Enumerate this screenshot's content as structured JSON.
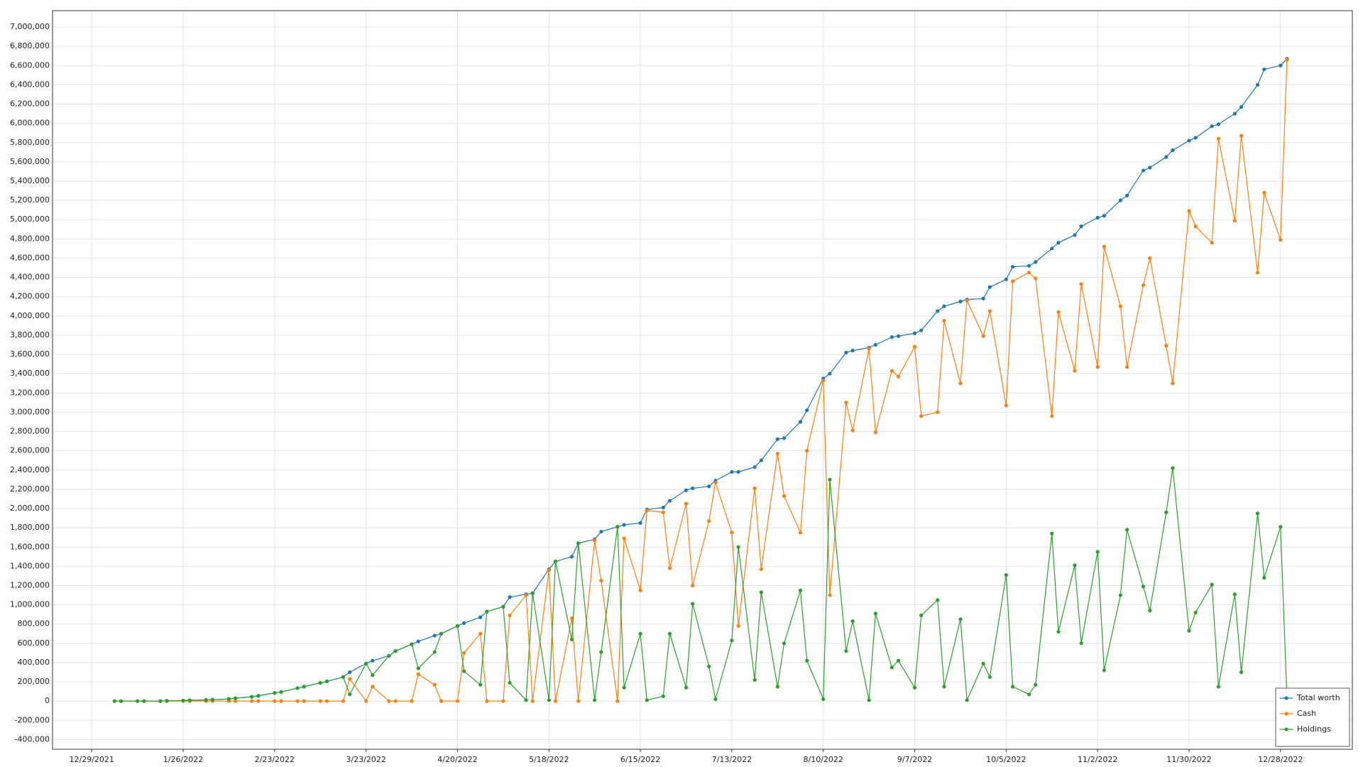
{
  "chart_data": {
    "type": "line",
    "x": [
      "1/5/2022",
      "1/7/2022",
      "1/12/2022",
      "1/14/2022",
      "1/19/2022",
      "1/21/2022",
      "1/26/2022",
      "1/28/2022",
      "2/2/2022",
      "2/4/2022",
      "2/9/2022",
      "2/11/2022",
      "2/16/2022",
      "2/18/2022",
      "2/23/2022",
      "2/25/2022",
      "3/2/2022",
      "3/4/2022",
      "3/9/2022",
      "3/11/2022",
      "3/16/2022",
      "3/18/2022",
      "3/23/2022",
      "3/25/2022",
      "3/30/2022",
      "4/1/2022",
      "4/6/2022",
      "4/8/2022",
      "4/13/2022",
      "4/15/2022",
      "4/20/2022",
      "4/22/2022",
      "4/27/2022",
      "4/29/2022",
      "5/4/2022",
      "5/6/2022",
      "5/11/2022",
      "5/13/2022",
      "5/18/2022",
      "5/20/2022",
      "5/25/2022",
      "5/27/2022",
      "6/1/2022",
      "6/3/2022",
      "6/8/2022",
      "6/10/2022",
      "6/15/2022",
      "6/17/2022",
      "6/22/2022",
      "6/24/2022",
      "6/29/2022",
      "7/1/2022",
      "7/6/2022",
      "7/8/2022",
      "7/13/2022",
      "7/15/2022",
      "7/20/2022",
      "7/22/2022",
      "7/27/2022",
      "7/29/2022",
      "8/3/2022",
      "8/5/2022",
      "8/10/2022",
      "8/12/2022",
      "8/17/2022",
      "8/19/2022",
      "8/24/2022",
      "8/26/2022",
      "8/31/2022",
      "9/2/2022",
      "9/7/2022",
      "9/9/2022",
      "9/14/2022",
      "9/16/2022",
      "9/21/2022",
      "9/23/2022",
      "9/28/2022",
      "9/30/2022",
      "10/5/2022",
      "10/7/2022",
      "10/12/2022",
      "10/14/2022",
      "10/19/2022",
      "10/21/2022",
      "10/26/2022",
      "10/28/2022",
      "11/2/2022",
      "11/4/2022",
      "11/9/2022",
      "11/11/2022",
      "11/16/2022",
      "11/18/2022",
      "11/23/2022",
      "11/25/2022",
      "11/30/2022",
      "12/2/2022",
      "12/7/2022",
      "12/9/2022",
      "12/14/2022",
      "12/16/2022",
      "12/21/2022",
      "12/23/2022",
      "12/28/2022",
      "12/30/2022"
    ],
    "series": [
      {
        "name": "Total worth",
        "color": "#1f77b4",
        "values": [
          0,
          0,
          0,
          0,
          0,
          3000,
          5000,
          8000,
          12000,
          15000,
          22000,
          30000,
          45000,
          55000,
          85000,
          95000,
          135000,
          150000,
          190000,
          205000,
          250000,
          300000,
          390000,
          420000,
          470000,
          520000,
          590000,
          620000,
          680000,
          700000,
          780000,
          810000,
          870000,
          930000,
          980000,
          1080000,
          1110000,
          1120000,
          1370000,
          1450000,
          1500000,
          1640000,
          1680000,
          1760000,
          1810000,
          1830000,
          1850000,
          1990000,
          2010000,
          2080000,
          2190000,
          2210000,
          2230000,
          2290000,
          2380000,
          2380000,
          2430000,
          2500000,
          2720000,
          2730000,
          2900000,
          3020000,
          3350000,
          3400000,
          3620000,
          3640000,
          3670000,
          3700000,
          3780000,
          3790000,
          3820000,
          3850000,
          4050000,
          4100000,
          4150000,
          4170000,
          4180000,
          4300000,
          4380000,
          4510000,
          4520000,
          4560000,
          4700000,
          4760000,
          4840000,
          4930000,
          5020000,
          5040000,
          5200000,
          5250000,
          5510000,
          5540000,
          5650000,
          5720000,
          5820000,
          5850000,
          5970000,
          5990000,
          6100000,
          6170000,
          6400000,
          6560000,
          6600000,
          6670000
        ]
      },
      {
        "name": "Cash",
        "color": "#ff7f0e",
        "values": [
          0,
          0,
          0,
          0,
          0,
          0,
          0,
          0,
          0,
          0,
          0,
          0,
          0,
          0,
          0,
          0,
          0,
          0,
          0,
          0,
          0,
          230000,
          0,
          150000,
          0,
          0,
          0,
          280000,
          170000,
          0,
          0,
          500000,
          700000,
          0,
          0,
          890000,
          1100000,
          0,
          1360000,
          0,
          860000,
          0,
          1670000,
          1250000,
          0,
          1690000,
          1150000,
          1980000,
          1960000,
          1380000,
          2050000,
          1200000,
          1870000,
          2270000,
          1750000,
          780000,
          2210000,
          1370000,
          2570000,
          2130000,
          1750000,
          2600000,
          3330000,
          1100000,
          3100000,
          2810000,
          3660000,
          2790000,
          3430000,
          3370000,
          3680000,
          2960000,
          3000000,
          3950000,
          3300000,
          4160000,
          3790000,
          4050000,
          3070000,
          4360000,
          4450000,
          4390000,
          2960000,
          4040000,
          3430000,
          4330000,
          3470000,
          4720000,
          4100000,
          3470000,
          4320000,
          4600000,
          3690000,
          3300000,
          5090000,
          4930000,
          4760000,
          5840000,
          4990000,
          5870000,
          4450000,
          5280000,
          4790000,
          6660000
        ]
      },
      {
        "name": "Holdings",
        "color": "#2ca02c",
        "values": [
          0,
          0,
          0,
          0,
          0,
          3000,
          5000,
          8000,
          12000,
          15000,
          22000,
          30000,
          45000,
          55000,
          85000,
          95000,
          135000,
          150000,
          190000,
          205000,
          250000,
          70000,
          390000,
          270000,
          470000,
          520000,
          590000,
          340000,
          510000,
          700000,
          780000,
          310000,
          170000,
          930000,
          980000,
          190000,
          10000,
          1120000,
          10000,
          1450000,
          640000,
          1640000,
          10000,
          510000,
          1810000,
          140000,
          700000,
          10000,
          50000,
          700000,
          140000,
          1010000,
          360000,
          20000,
          630000,
          1600000,
          220000,
          1130000,
          150000,
          600000,
          1150000,
          420000,
          20000,
          2300000,
          520000,
          830000,
          10000,
          910000,
          350000,
          420000,
          140000,
          890000,
          1050000,
          150000,
          850000,
          10000,
          390000,
          250000,
          1310000,
          150000,
          70000,
          170000,
          1740000,
          720000,
          1410000,
          600000,
          1550000,
          320000,
          1100000,
          1780000,
          1190000,
          940000,
          1960000,
          2420000,
          730000,
          920000,
          1210000,
          150000,
          1110000,
          300000,
          1950000,
          1280000,
          1810000,
          10000
        ]
      }
    ],
    "xlim": [
      "12/17/2021",
      "1/19/2023"
    ],
    "xticks": [
      "12/29/2021",
      "1/26/2022",
      "2/23/2022",
      "3/23/2022",
      "4/20/2022",
      "5/18/2022",
      "6/15/2022",
      "7/13/2022",
      "8/10/2022",
      "9/7/2022",
      "10/5/2022",
      "11/2/2022",
      "11/30/2022",
      "12/28/2022"
    ],
    "ylim": [
      -500000,
      7170000
    ],
    "yticks": [
      {
        "value": -400000,
        "label": "-400,000"
      },
      {
        "value": -200000,
        "label": "-200,000"
      },
      0,
      {
        "value": 200000,
        "label": "200,000"
      },
      {
        "value": 400000,
        "label": "400,000"
      },
      {
        "value": 600000,
        "label": "600,000"
      },
      {
        "value": 800000,
        "label": "800,000"
      },
      {
        "value": 1000000,
        "label": "1,000,000"
      },
      {
        "value": 1200000,
        "label": "1,200,000"
      },
      {
        "value": 1400000,
        "label": "1,400,000"
      },
      {
        "value": 1600000,
        "label": "1,600,000"
      },
      {
        "value": 1800000,
        "label": "1,800,000"
      },
      {
        "value": 2000000,
        "label": "2,000,000"
      },
      {
        "value": 2200000,
        "label": "2,200,000"
      },
      {
        "value": 2400000,
        "label": "2,400,000"
      },
      {
        "value": 2600000,
        "label": "2,600,000"
      },
      {
        "value": 2800000,
        "label": "2,800,000"
      },
      {
        "value": 3000000,
        "label": "3,000,000"
      },
      {
        "value": 3200000,
        "label": "3,200,000"
      },
      {
        "value": 3400000,
        "label": "3,400,000"
      },
      {
        "value": 3600000,
        "label": "3,600,000"
      },
      {
        "value": 3800000,
        "label": "3,800,000"
      },
      {
        "value": 4000000,
        "label": "4,000,000"
      },
      {
        "value": 4200000,
        "label": "4,200,000"
      },
      {
        "value": 4400000,
        "label": "4,400,000"
      },
      {
        "value": 4600000,
        "label": "4,600,000"
      },
      {
        "value": 4800000,
        "label": "4,800,000"
      },
      {
        "value": 5000000,
        "label": "5,000,000"
      },
      {
        "value": 5200000,
        "label": "5,200,000"
      },
      {
        "value": 5400000,
        "label": "5,400,000"
      },
      {
        "value": 5600000,
        "label": "5,600,000"
      },
      {
        "value": 5800000,
        "label": "5,800,000"
      },
      {
        "value": 6000000,
        "label": "6,000,000"
      },
      {
        "value": 6200000,
        "label": "6,200,000"
      },
      {
        "value": 6400000,
        "label": "6,400,000"
      },
      {
        "value": 6600000,
        "label": "6,600,000"
      },
      {
        "value": 6800000,
        "label": "6,800,000"
      },
      {
        "value": 7000000,
        "label": "7,000,000"
      }
    ],
    "grid": true,
    "legend": "bottom-right"
  }
}
